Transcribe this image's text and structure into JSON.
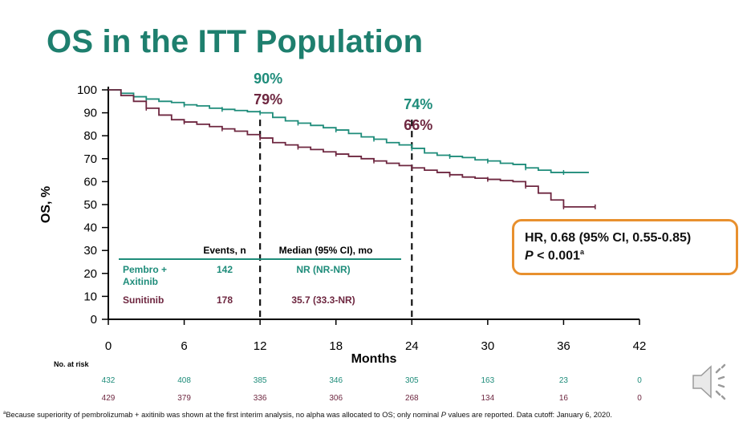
{
  "title": "OS in the ITT Population",
  "chart_data": {
    "type": "line",
    "xlabel": "Months",
    "ylabel": "OS, %",
    "xlim": [
      0,
      42
    ],
    "ylim": [
      0,
      100
    ],
    "x_ticks": [
      0,
      6,
      12,
      18,
      24,
      30,
      36,
      42
    ],
    "y_ticks": [
      0,
      10,
      20,
      30,
      40,
      50,
      60,
      70,
      80,
      90,
      100
    ],
    "series": [
      {
        "name": "Pembro + Axitinib",
        "color": "#1e8c7a",
        "x": [
          0,
          1,
          2,
          3,
          4,
          5,
          6,
          7,
          8,
          9,
          10,
          11,
          12,
          13,
          14,
          15,
          16,
          17,
          18,
          19,
          20,
          21,
          22,
          23,
          24,
          25,
          26,
          27,
          28,
          29,
          30,
          31,
          32,
          33,
          34,
          35,
          36,
          37,
          38
        ],
        "y": [
          100,
          98.5,
          97,
          96,
          95,
          94.5,
          93.5,
          93,
          92,
          91.5,
          91,
          90.5,
          90,
          88,
          86.5,
          85.5,
          84.5,
          83.5,
          82.5,
          81,
          79.5,
          78.5,
          77,
          76,
          74.5,
          72.5,
          71.5,
          71,
          70.5,
          69.5,
          69,
          68,
          67.5,
          66,
          65,
          64,
          64,
          64,
          64
        ]
      },
      {
        "name": "Sunitinib",
        "color": "#6e2740",
        "x": [
          0,
          1,
          2,
          3,
          4,
          5,
          6,
          7,
          8,
          9,
          10,
          11,
          12,
          13,
          14,
          15,
          16,
          17,
          18,
          19,
          20,
          21,
          22,
          23,
          24,
          25,
          26,
          27,
          28,
          29,
          30,
          31,
          32,
          33,
          34,
          35,
          36,
          37,
          38,
          38.5
        ],
        "y": [
          100,
          97.5,
          95,
          92,
          89,
          87,
          86,
          85,
          84,
          83,
          82,
          80.5,
          79,
          77,
          76,
          75,
          74,
          73,
          72,
          71,
          70,
          69,
          68,
          67,
          66,
          65,
          64,
          63,
          62,
          61.5,
          61,
          60.5,
          60,
          58,
          55,
          52,
          49,
          49,
          49,
          49
        ]
      }
    ],
    "reference_lines_x": [
      12,
      24
    ],
    "annotations": [
      {
        "x": 12,
        "series": 0,
        "text": "90%"
      },
      {
        "x": 12,
        "series": 1,
        "text": "79%"
      },
      {
        "x": 24,
        "series": 0,
        "text": "74%"
      },
      {
        "x": 24,
        "series": 1,
        "text": "66%"
      }
    ],
    "legend_table": {
      "headers": [
        "Events, n",
        "Median (95% CI), mo"
      ],
      "rows": [
        {
          "label_lines": [
            "Pembro +",
            "Axitinib"
          ],
          "events": "142",
          "median": "NR (NR-NR)"
        },
        {
          "label_lines": [
            "Sunitinib"
          ],
          "events": "178",
          "median": "35.7 (33.3-NR)"
        }
      ]
    },
    "at_risk": {
      "title": "No. at risk",
      "rows": [
        [
          432,
          408,
          385,
          346,
          305,
          163,
          23,
          0
        ],
        [
          429,
          379,
          336,
          306,
          268,
          134,
          16,
          0
        ]
      ]
    }
  },
  "hr_box": {
    "line1": "HR, 0.68 (95% CI, 0.55-0.85)",
    "p_label": "P",
    "p_rest": " < 0.001",
    "p_sup": "a"
  },
  "footnote": {
    "sup": "a",
    "part1": "Because superiority of pembrolizumab  + axitinib was shown at the first interim analysis, no alpha  was allocated to OS; only nominal ",
    "p_italic": "P",
    "part2": " values are reported. Data cutoff: January 6, 2020."
  },
  "speaker_icon": "speaker-icon"
}
